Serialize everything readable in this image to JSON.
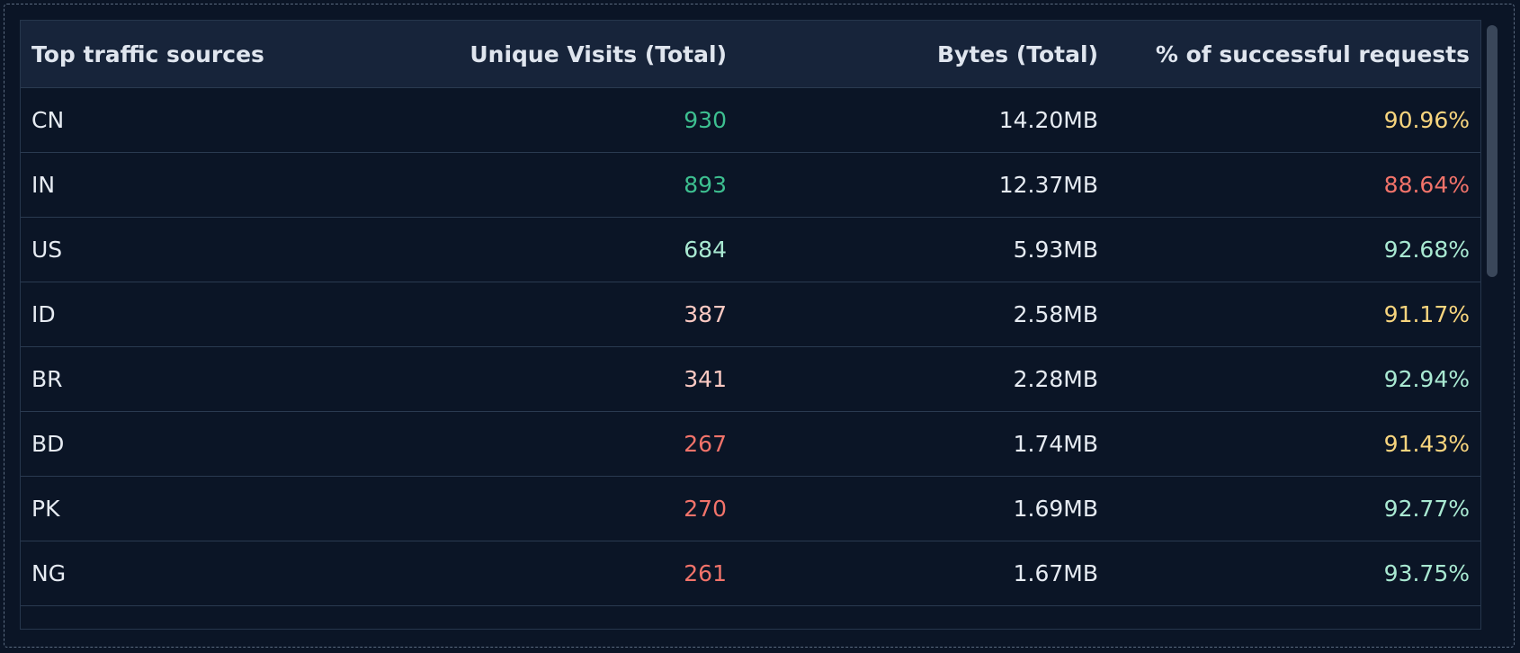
{
  "table": {
    "headers": [
      "Top traffic sources",
      "Unique Visits (Total)",
      "Bytes (Total)",
      "% of successful requests"
    ],
    "rows": [
      {
        "source": "CN",
        "visits": 930,
        "bytes": "14.20MB",
        "success": "90.96%",
        "visits_color": "#3dbf90",
        "success_color": "#f8d57e"
      },
      {
        "source": "IN",
        "visits": 893,
        "bytes": "12.37MB",
        "success": "88.64%",
        "visits_color": "#3dbf90",
        "success_color": "#f2736a"
      },
      {
        "source": "US",
        "visits": 684,
        "bytes": "5.93MB",
        "success": "92.68%",
        "visits_color": "#a9e9d2",
        "success_color": "#a9e9d2"
      },
      {
        "source": "ID",
        "visits": 387,
        "bytes": "2.58MB",
        "success": "91.17%",
        "visits_color": "#fbc9c2",
        "success_color": "#f8d57e"
      },
      {
        "source": "BR",
        "visits": 341,
        "bytes": "2.28MB",
        "success": "92.94%",
        "visits_color": "#fbc9c2",
        "success_color": "#a9e9d2"
      },
      {
        "source": "BD",
        "visits": 267,
        "bytes": "1.74MB",
        "success": "91.43%",
        "visits_color": "#f2736a",
        "success_color": "#f8d57e"
      },
      {
        "source": "PK",
        "visits": 270,
        "bytes": "1.69MB",
        "success": "92.77%",
        "visits_color": "#f2736a",
        "success_color": "#a9e9d2"
      },
      {
        "source": "NG",
        "visits": 261,
        "bytes": "1.67MB",
        "success": "93.75%",
        "visits_color": "#f2736a",
        "success_color": "#a9e9d2"
      }
    ]
  }
}
